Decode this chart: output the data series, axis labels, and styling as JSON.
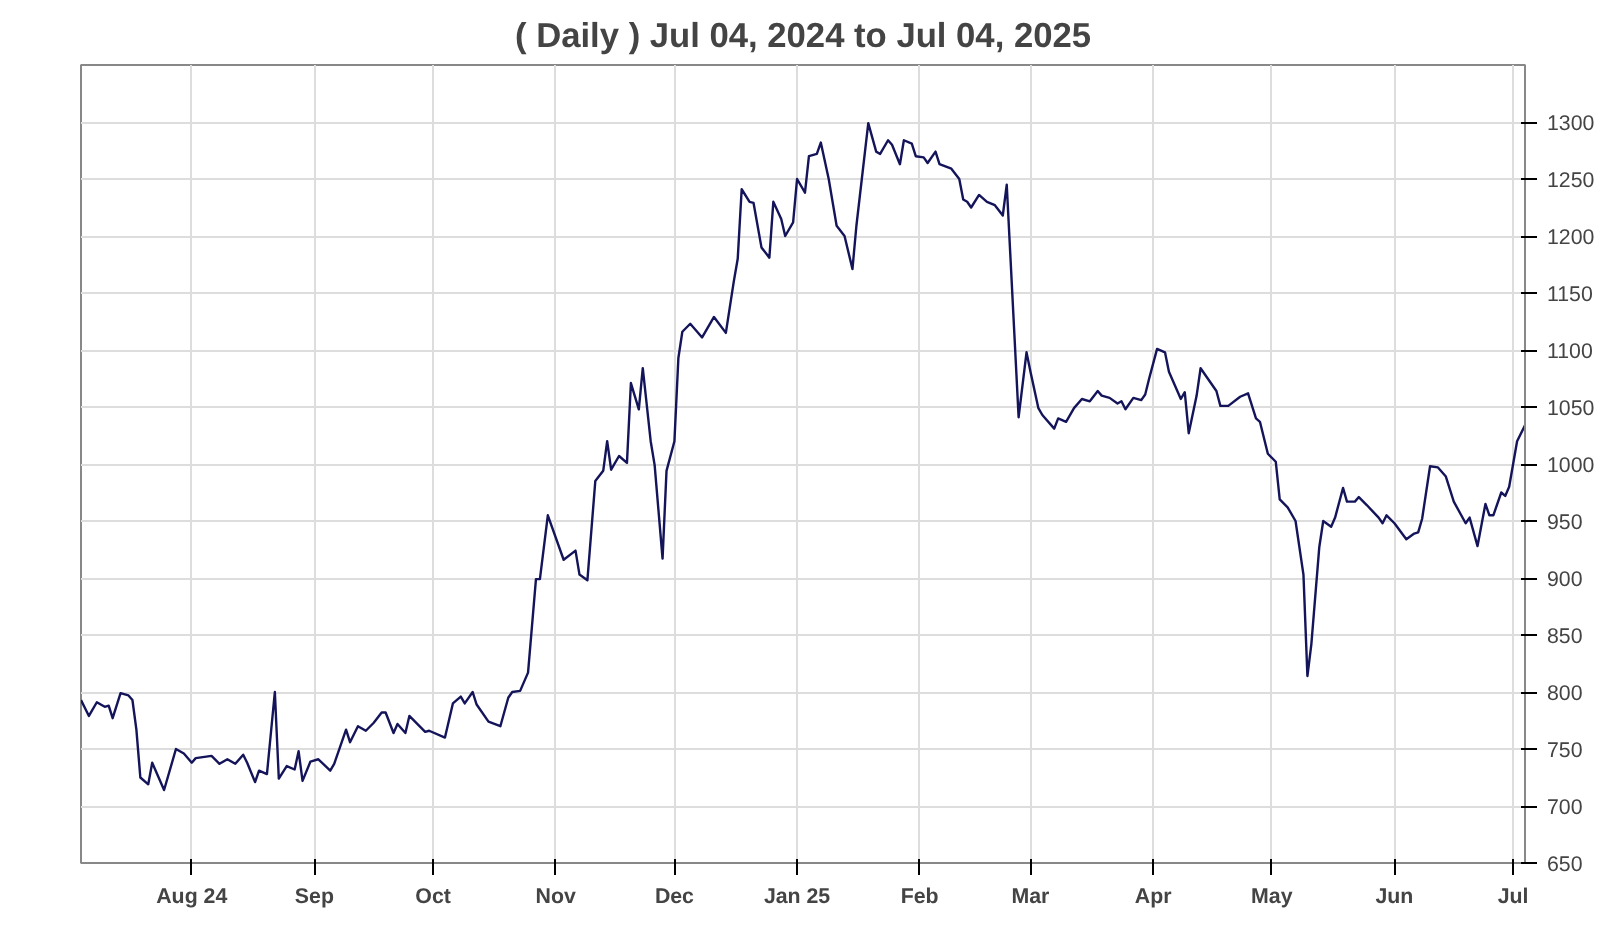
{
  "chart_data": {
    "type": "line",
    "title": "( Daily ) Jul 04, 2024 to Jul 04, 2025",
    "x": [
      "2024-07-04",
      "2024-07-06",
      "2024-07-08",
      "2024-07-10",
      "2024-07-11",
      "2024-07-12",
      "2024-07-14",
      "2024-07-16",
      "2024-07-17",
      "2024-07-18",
      "2024-07-19",
      "2024-07-21",
      "2024-07-22",
      "2024-07-25",
      "2024-07-28",
      "2024-07-30",
      "2024-08-01",
      "2024-08-02",
      "2024-08-06",
      "2024-08-08",
      "2024-08-10",
      "2024-08-12",
      "2024-08-14",
      "2024-08-15",
      "2024-08-17",
      "2024-08-18",
      "2024-08-20",
      "2024-08-22",
      "2024-08-23",
      "2024-08-25",
      "2024-08-27",
      "2024-08-28",
      "2024-08-29",
      "2024-08-31",
      "2024-09-02",
      "2024-09-05",
      "2024-09-06",
      "2024-09-09",
      "2024-09-10",
      "2024-09-12",
      "2024-09-14",
      "2024-09-16",
      "2024-09-18",
      "2024-09-19",
      "2024-09-21",
      "2024-09-22",
      "2024-09-24",
      "2024-09-25",
      "2024-09-29",
      "2024-09-30",
      "2024-10-04",
      "2024-10-06",
      "2024-10-08",
      "2024-10-09",
      "2024-10-11",
      "2024-10-12",
      "2024-10-15",
      "2024-10-18",
      "2024-10-20",
      "2024-10-21",
      "2024-10-23",
      "2024-10-25",
      "2024-10-27",
      "2024-10-28",
      "2024-10-30",
      "2024-11-03",
      "2024-11-06",
      "2024-11-07",
      "2024-11-09",
      "2024-11-11",
      "2024-11-13",
      "2024-11-14",
      "2024-11-15",
      "2024-11-17",
      "2024-11-19",
      "2024-11-20",
      "2024-11-22",
      "2024-11-23",
      "2024-11-25",
      "2024-11-26",
      "2024-11-28",
      "2024-11-29",
      "2024-12-01",
      "2024-12-02",
      "2024-12-03",
      "2024-12-05",
      "2024-12-08",
      "2024-12-11",
      "2024-12-14",
      "2024-12-16",
      "2024-12-17",
      "2024-12-18",
      "2024-12-20",
      "2024-12-21",
      "2024-12-23",
      "2024-12-25",
      "2024-12-26",
      "2024-12-28",
      "2024-12-29",
      "2024-12-31",
      "2025-01-01",
      "2025-01-03",
      "2025-01-04",
      "2025-01-06",
      "2025-01-07",
      "2025-01-09",
      "2025-01-11",
      "2025-01-13",
      "2025-01-15",
      "2025-01-16",
      "2025-01-19",
      "2025-01-21",
      "2025-01-22",
      "2025-01-24",
      "2025-01-25",
      "2025-01-27",
      "2025-01-28",
      "2025-01-30",
      "2025-01-31",
      "2025-02-02",
      "2025-02-03",
      "2025-02-05",
      "2025-02-06",
      "2025-02-09",
      "2025-02-11",
      "2025-02-12",
      "2025-02-13",
      "2025-02-14",
      "2025-02-16",
      "2025-02-18",
      "2025-02-20",
      "2025-02-22",
      "2025-02-23",
      "2025-02-26",
      "2025-02-28",
      "2025-03-01",
      "2025-03-03",
      "2025-03-04",
      "2025-03-07",
      "2025-03-08",
      "2025-03-10",
      "2025-03-12",
      "2025-03-14",
      "2025-03-16",
      "2025-03-18",
      "2025-03-19",
      "2025-03-21",
      "2025-03-23",
      "2025-03-24",
      "2025-03-25",
      "2025-03-27",
      "2025-03-29",
      "2025-03-30",
      "2025-03-31",
      "2025-04-02",
      "2025-04-04",
      "2025-04-05",
      "2025-04-08",
      "2025-04-09",
      "2025-04-10",
      "2025-04-12",
      "2025-04-13",
      "2025-04-17",
      "2025-04-18",
      "2025-04-20",
      "2025-04-23",
      "2025-04-25",
      "2025-04-27",
      "2025-04-28",
      "2025-04-30",
      "2025-05-02",
      "2025-05-03",
      "2025-05-05",
      "2025-05-07",
      "2025-05-09",
      "2025-05-10",
      "2025-05-11",
      "2025-05-13",
      "2025-05-14",
      "2025-05-16",
      "2025-05-17",
      "2025-05-19",
      "2025-05-20",
      "2025-05-22",
      "2025-05-23",
      "2025-05-25",
      "2025-05-28",
      "2025-05-29",
      "2025-05-30",
      "2025-06-01",
      "2025-06-04",
      "2025-06-06",
      "2025-06-07",
      "2025-06-08",
      "2025-06-10",
      "2025-06-12",
      "2025-06-14",
      "2025-06-16",
      "2025-06-19",
      "2025-06-20",
      "2025-06-22",
      "2025-06-24",
      "2025-06-25",
      "2025-06-26",
      "2025-06-28",
      "2025-06-29",
      "2025-06-30",
      "2025-07-02",
      "2025-07-04"
    ],
    "series": [
      {
        "color": "#14145a",
        "values": [
          793,
          779,
          791,
          787,
          788,
          777,
          799,
          797,
          793,
          767,
          725,
          719,
          738,
          714,
          750,
          746,
          738,
          742,
          744,
          737,
          741,
          737,
          745,
          738,
          721,
          731,
          728,
          800,
          724,
          735,
          732,
          748,
          722,
          739,
          741,
          731,
          737,
          767,
          756,
          770,
          766,
          773,
          782,
          782,
          764,
          772,
          764,
          779,
          765,
          766,
          760,
          790,
          796,
          790,
          800,
          789,
          774,
          770,
          795,
          800,
          801,
          817,
          899,
          899,
          955,
          916,
          924,
          903,
          898,
          985,
          994,
          1020,
          995,
          1007,
          1001,
          1071,
          1048,
          1084,
          1020,
          999,
          917,
          994,
          1020,
          1093,
          1116,
          1123,
          1111,
          1129,
          1115,
          1160,
          1180,
          1241,
          1230,
          1229,
          1190,
          1181,
          1230,
          1215,
          1200,
          1212,
          1250,
          1238,
          1270,
          1272,
          1282,
          1250,
          1209,
          1200,
          1171,
          1209,
          1299,
          1274,
          1272,
          1284,
          1280,
          1263,
          1284,
          1281,
          1270,
          1269,
          1264,
          1274,
          1263,
          1259,
          1250,
          1232,
          1230,
          1225,
          1236,
          1230,
          1227,
          1218,
          1245,
          1041,
          1098,
          1081,
          1049,
          1043,
          1031,
          1040,
          1037,
          1049,
          1057,
          1055,
          1064,
          1060,
          1058,
          1053,
          1055,
          1048,
          1058,
          1056,
          1061,
          1075,
          1101,
          1098,
          1081,
          1057,
          1063,
          1027,
          1060,
          1084,
          1064,
          1051,
          1051,
          1059,
          1062,
          1040,
          1037,
          1009,
          1002,
          969,
          962,
          950,
          903,
          814,
          842,
          927,
          950,
          945,
          953,
          979,
          967,
          967,
          971,
          964,
          953,
          948,
          955,
          948,
          934,
          939,
          940,
          952,
          998,
          997,
          989,
          967,
          948,
          953,
          928,
          965,
          955,
          955,
          975,
          972,
          980,
          1020,
          1034
        ]
      }
    ],
    "xlim": [
      "2024-07-04",
      "2025-07-04"
    ],
    "xticks": [
      {
        "value": "2024-08-01",
        "label": "Aug 24"
      },
      {
        "value": "2024-09-01",
        "label": "Sep"
      },
      {
        "value": "2024-10-01",
        "label": "Oct"
      },
      {
        "value": "2024-11-01",
        "label": "Nov"
      },
      {
        "value": "2024-12-01",
        "label": "Dec"
      },
      {
        "value": "2025-01-01",
        "label": "Jan 25"
      },
      {
        "value": "2025-02-01",
        "label": "Feb"
      },
      {
        "value": "2025-03-01",
        "label": "Mar"
      },
      {
        "value": "2025-04-01",
        "label": "Apr"
      },
      {
        "value": "2025-05-01",
        "label": "May"
      },
      {
        "value": "2025-06-01",
        "label": "Jun"
      },
      {
        "value": "2025-07-01",
        "label": "Jul"
      }
    ],
    "ylim": [
      650,
      1350
    ],
    "yticks": [
      650,
      700,
      750,
      800,
      850,
      900,
      950,
      1000,
      1050,
      1100,
      1150,
      1200,
      1250,
      1300
    ],
    "grid": true
  }
}
